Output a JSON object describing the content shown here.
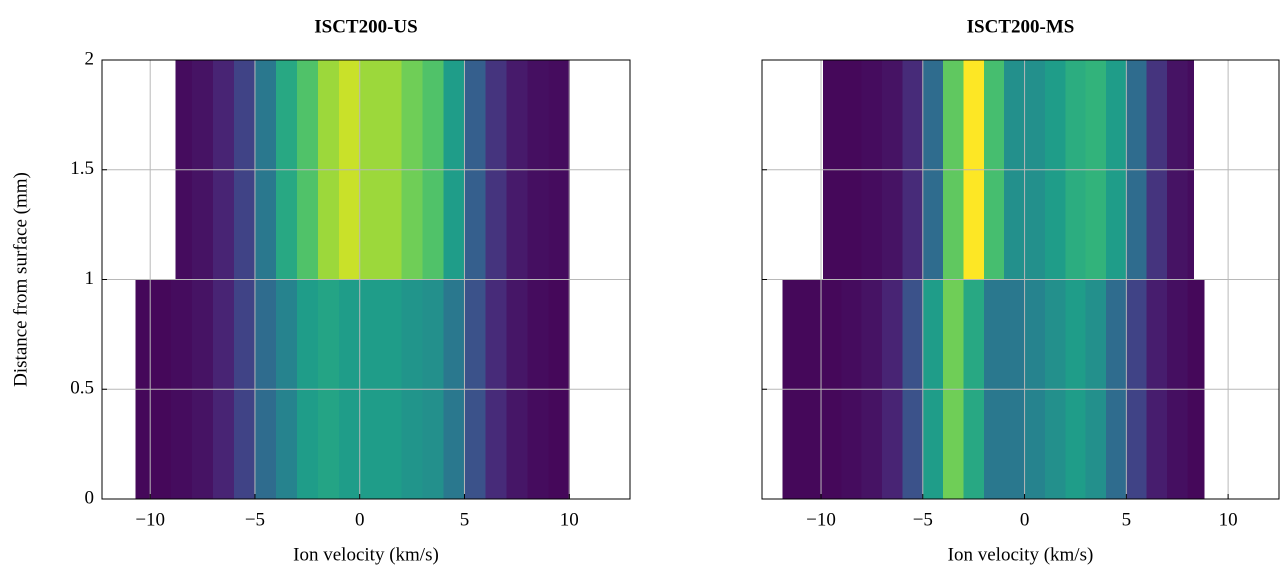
{
  "chart_data": [
    {
      "type": "heatmap",
      "title": "ISCT200-US",
      "xlabel": "Ion velocity (km/s)",
      "ylabel": "Distance from surface (mm)",
      "xlim": [
        -12.3,
        12.9
      ],
      "ylim": [
        0,
        2
      ],
      "xticks": [
        {
          "value": -10,
          "label": "−10"
        },
        {
          "value": -5,
          "label": "−5"
        },
        0,
        5,
        10
      ],
      "yticks": [
        0,
        0.5,
        1,
        1.5,
        2
      ],
      "show_yticklabels": true,
      "grid": true,
      "colormap": "viridis",
      "rows": [
        {
          "y": [
            0,
            1
          ],
          "bins": [
            -10.7,
            -10,
            -9,
            -8,
            -7,
            -6,
            -5,
            -4,
            -3,
            -2,
            -1,
            0,
            1,
            2,
            3,
            4,
            5,
            6,
            7,
            8,
            9,
            10
          ],
          "values": [
            0.02,
            0.02,
            0.03,
            0.05,
            0.1,
            0.2,
            0.35,
            0.45,
            0.55,
            0.58,
            0.55,
            0.55,
            0.55,
            0.52,
            0.5,
            0.4,
            0.25,
            0.12,
            0.06,
            0.03,
            0.02
          ]
        },
        {
          "y": [
            1,
            2
          ],
          "bins": [
            -8.8,
            -8,
            -7,
            -6,
            -5,
            -4,
            -3,
            -2,
            -1,
            0,
            1,
            2,
            3,
            4,
            5,
            6,
            7,
            8,
            9,
            10
          ],
          "values": [
            0.03,
            0.05,
            0.1,
            0.2,
            0.4,
            0.6,
            0.72,
            0.85,
            0.92,
            0.85,
            0.85,
            0.78,
            0.72,
            0.55,
            0.3,
            0.15,
            0.07,
            0.04,
            0.03
          ]
        }
      ]
    },
    {
      "type": "heatmap",
      "title": "ISCT200-MS",
      "xlabel": "Ion velocity (km/s)",
      "xlim": [
        -12.9,
        12.5
      ],
      "ylim": [
        0,
        2
      ],
      "xticks": [
        {
          "value": -10,
          "label": "−10"
        },
        {
          "value": -5,
          "label": "−5"
        },
        0,
        5,
        10
      ],
      "yticks": [
        0,
        0.5,
        1,
        1.5,
        2
      ],
      "show_yticklabels": false,
      "grid": true,
      "colormap": "viridis",
      "rows": [
        {
          "y": [
            0,
            1
          ],
          "bins": [
            -11.9,
            -11,
            -10,
            -9,
            -8,
            -7,
            -6,
            -5,
            -4,
            -3,
            -2,
            -1,
            0,
            1,
            2,
            3,
            4,
            5,
            6,
            7,
            8,
            8.8
          ],
          "values": [
            0.02,
            0.02,
            0.02,
            0.03,
            0.05,
            0.1,
            0.25,
            0.55,
            0.78,
            0.6,
            0.4,
            0.4,
            0.45,
            0.5,
            0.55,
            0.5,
            0.35,
            0.2,
            0.08,
            0.04,
            0.02
          ]
        },
        {
          "y": [
            1,
            2
          ],
          "bins": [
            -9.9,
            -9,
            -8,
            -7,
            -6,
            -5,
            -4,
            -3,
            -2,
            -1,
            0,
            1,
            2,
            3,
            4,
            5,
            6,
            7,
            8,
            8.3
          ],
          "values": [
            0.02,
            0.02,
            0.03,
            0.05,
            0.12,
            0.35,
            0.75,
            1.0,
            0.7,
            0.5,
            0.5,
            0.55,
            0.62,
            0.65,
            0.55,
            0.35,
            0.15,
            0.05,
            0.03
          ]
        }
      ]
    }
  ]
}
